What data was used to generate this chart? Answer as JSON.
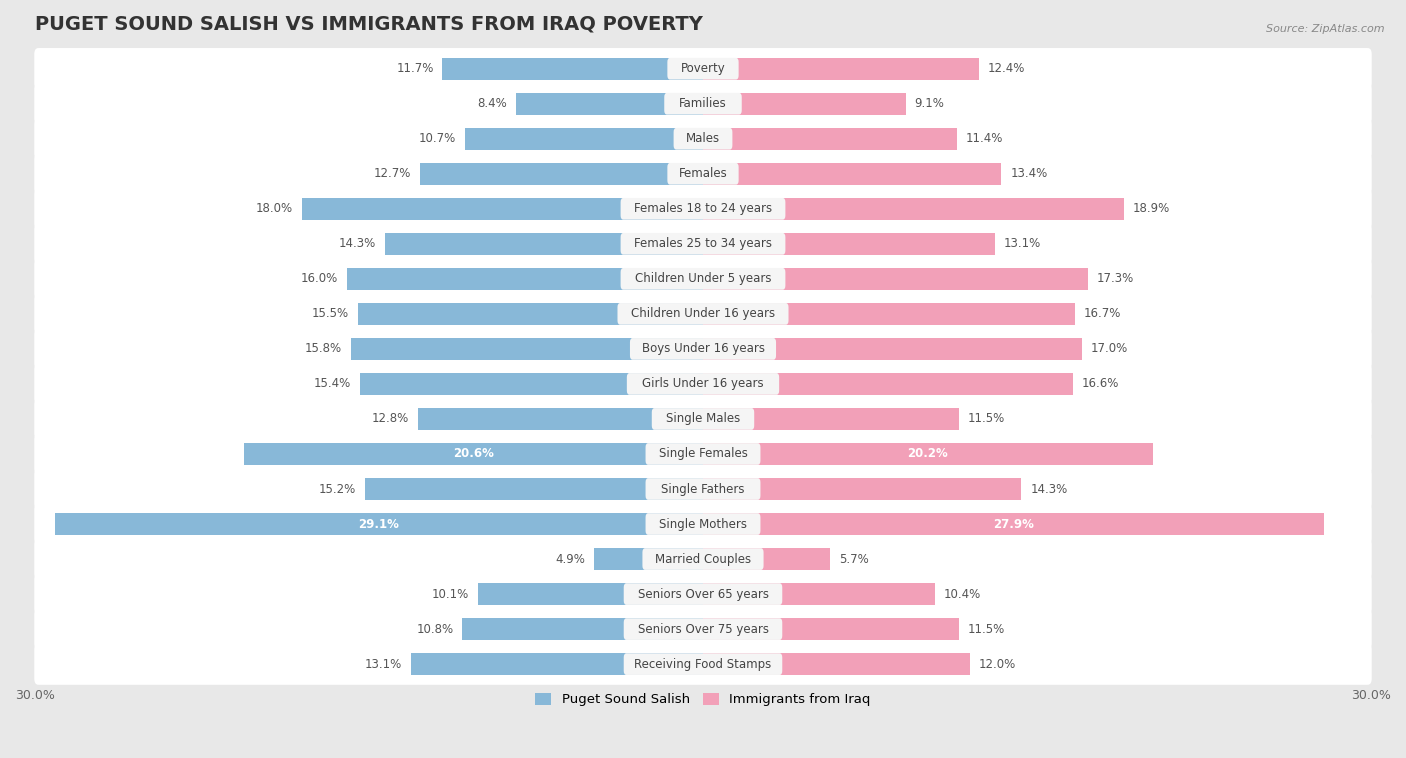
{
  "title": "PUGET SOUND SALISH VS IMMIGRANTS FROM IRAQ POVERTY",
  "source": "Source: ZipAtlas.com",
  "categories": [
    "Poverty",
    "Families",
    "Males",
    "Females",
    "Females 18 to 24 years",
    "Females 25 to 34 years",
    "Children Under 5 years",
    "Children Under 16 years",
    "Boys Under 16 years",
    "Girls Under 16 years",
    "Single Males",
    "Single Females",
    "Single Fathers",
    "Single Mothers",
    "Married Couples",
    "Seniors Over 65 years",
    "Seniors Over 75 years",
    "Receiving Food Stamps"
  ],
  "left_values": [
    11.7,
    8.4,
    10.7,
    12.7,
    18.0,
    14.3,
    16.0,
    15.5,
    15.8,
    15.4,
    12.8,
    20.6,
    15.2,
    29.1,
    4.9,
    10.1,
    10.8,
    13.1
  ],
  "right_values": [
    12.4,
    9.1,
    11.4,
    13.4,
    18.9,
    13.1,
    17.3,
    16.7,
    17.0,
    16.6,
    11.5,
    20.2,
    14.3,
    27.9,
    5.7,
    10.4,
    11.5,
    12.0
  ],
  "left_color": "#88b8d8",
  "right_color": "#f2a0b8",
  "left_label": "Puget Sound Salish",
  "right_label": "Immigrants from Iraq",
  "xlim": 30.0,
  "background_color": "#e8e8e8",
  "row_bg_color": "#ffffff",
  "label_pill_color": "#f0f0f0",
  "title_fontsize": 14,
  "label_fontsize": 8.5,
  "value_fontsize": 8.5,
  "bar_height": 0.62,
  "white_label_rows": [
    "Single Females",
    "Single Mothers"
  ]
}
